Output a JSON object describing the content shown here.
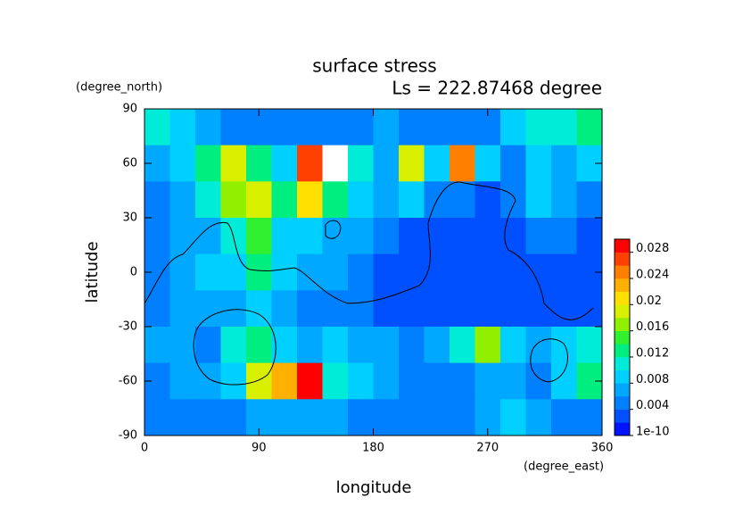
{
  "chart_data": {
    "type": "contour",
    "title": "surface stress",
    "subtitle": "Ls = 222.87468 degree",
    "xlabel": "longitude",
    "ylabel": "latitude",
    "xunit": "(degree_east)",
    "yunit": "(degree_north)",
    "x": [
      10,
      30,
      50,
      70,
      90,
      110,
      130,
      150,
      170,
      190,
      210,
      230,
      250,
      270,
      290,
      310,
      330,
      350
    ],
    "y": [
      80,
      60,
      40,
      20,
      0,
      -20,
      -40,
      -60,
      -80
    ],
    "z": [
      [
        0.01,
        0.008,
        0.006,
        0.004,
        0.004,
        0.004,
        0.004,
        0.004,
        0.004,
        0.006,
        0.004,
        0.004,
        0.004,
        0.004,
        0.008,
        0.01,
        0.01,
        0.012
      ],
      [
        0.006,
        0.008,
        0.012,
        0.018,
        0.012,
        0.008,
        0.026,
        0.032,
        0.01,
        0.006,
        0.018,
        0.008,
        0.024,
        0.008,
        0.004,
        0.008,
        0.006,
        0.008
      ],
      [
        0.004,
        0.006,
        0.01,
        0.016,
        0.018,
        0.012,
        0.02,
        0.012,
        0.008,
        0.006,
        0.008,
        0.004,
        0.004,
        0.002,
        0.004,
        0.008,
        0.006,
        0.004
      ],
      [
        0.004,
        0.006,
        0.006,
        0.01,
        0.014,
        0.008,
        0.008,
        0.006,
        0.006,
        0.004,
        0.002,
        0.002,
        0.002,
        0.002,
        0.002,
        0.004,
        0.004,
        0.002
      ],
      [
        0.004,
        0.006,
        0.008,
        0.008,
        0.012,
        0.008,
        0.006,
        0.006,
        0.004,
        0.002,
        0.002,
        0.002,
        0.002,
        0.002,
        0.002,
        0.002,
        0.002,
        0.002
      ],
      [
        0.004,
        0.006,
        0.006,
        0.006,
        0.008,
        0.006,
        0.004,
        0.004,
        0.004,
        0.002,
        0.002,
        0.002,
        0.002,
        0.002,
        0.002,
        0.002,
        0.002,
        0.002
      ],
      [
        0.006,
        0.006,
        0.004,
        0.01,
        0.012,
        0.008,
        0.006,
        0.008,
        0.006,
        0.006,
        0.004,
        0.006,
        0.01,
        0.016,
        0.008,
        0.006,
        0.008,
        0.01
      ],
      [
        0.004,
        0.006,
        0.006,
        0.008,
        0.018,
        0.022,
        0.028,
        0.01,
        0.008,
        0.006,
        0.004,
        0.004,
        0.004,
        0.006,
        0.006,
        0.004,
        0.008,
        0.012
      ],
      [
        0.004,
        0.004,
        0.004,
        0.004,
        0.006,
        0.006,
        0.006,
        0.006,
        0.004,
        0.004,
        0.004,
        0.004,
        0.004,
        0.006,
        0.008,
        0.006,
        0.004,
        0.004
      ]
    ],
    "xlim": [
      0,
      360
    ],
    "ylim": [
      -90,
      90
    ],
    "xticks": [
      0,
      90,
      180,
      270,
      360
    ],
    "yticks": [
      -90,
      -60,
      -30,
      0,
      30,
      60,
      90
    ],
    "colorbar": {
      "clim": [
        0,
        0.03
      ],
      "ticks": [
        1e-10,
        0.004,
        0.008,
        0.012,
        0.016,
        0.02,
        0.024,
        0.028
      ],
      "colors": [
        "#0014ff",
        "#0050ff",
        "#0080ff",
        "#00a8ff",
        "#00d0ff",
        "#00ecd8",
        "#00ee80",
        "#30f030",
        "#90f000",
        "#d8f000",
        "#ffe000",
        "#ffb000",
        "#ff8000",
        "#ff4000",
        "#ff0000"
      ],
      "over_color": "#ffffff"
    }
  }
}
